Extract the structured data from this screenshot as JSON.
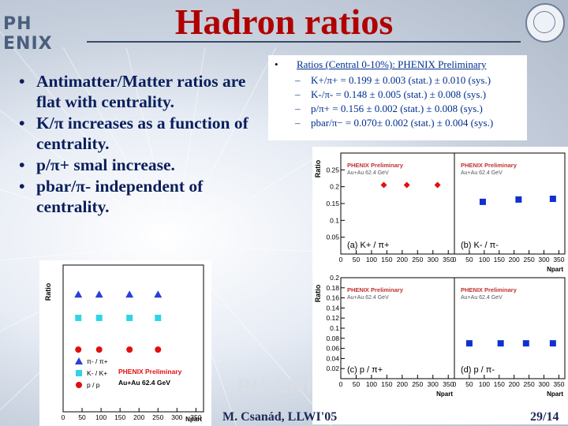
{
  "slide": {
    "title": "Hadron ratios",
    "logo_text": "PH ENIX",
    "watermark": "PH ENIX",
    "bullets": [
      "Antimatter/Matter ratios are flat with centrality.",
      "K/π increases as a function of centrality.",
      "p/π+ smal increase.",
      "pbar/π- independent of centrality."
    ],
    "box": {
      "bullet": "•",
      "heading": "Ratios (Central 0-10%): PHENIX Preliminary",
      "items": [
        "K+/π+ = 0.199 ± 0.003 (stat.) ± 0.010 (sys.)",
        "K-/π- = 0.148 ± 0.005 (stat.) ± 0.008 (sys.)",
        "p/π+ = 0.156 ± 0.002 (stat.) ± 0.008 (sys.)",
        "pbar/π− = 0.070± 0.002 (stat.) ± 0.004 (sys.)"
      ],
      "dash": "–"
    },
    "footer": {
      "author": "M. Csanád, LLWI'05",
      "page": "29/14"
    }
  },
  "chart_data": [
    {
      "type": "scatter",
      "panel": "left",
      "ylabel": "Ratio",
      "xlabel": "Npart",
      "xticks": [
        "0",
        "50",
        "100",
        "150",
        "200",
        "250",
        "300",
        "350"
      ],
      "xlim": [
        0,
        370
      ],
      "ylim": [
        0,
        1.25
      ],
      "annotation": [
        "PHENIX Preliminary",
        "Au+Au 62.4 GeV"
      ],
      "legend": [
        "π- / π+",
        "K- / K+",
        "p / p"
      ],
      "series": [
        {
          "name": "π- / π+",
          "marker": "triangle",
          "color": "#2a3fd6",
          "points": [
            [
              40,
              1.0
            ],
            [
              95,
              1.0
            ],
            [
              175,
              1.0
            ],
            [
              250,
              1.0
            ]
          ]
        },
        {
          "name": "K- / K+",
          "marker": "square",
          "color": "#2fd4e6",
          "points": [
            [
              40,
              0.8
            ],
            [
              95,
              0.8
            ],
            [
              175,
              0.8
            ],
            [
              250,
              0.8
            ]
          ]
        },
        {
          "name": "p / p",
          "marker": "circle",
          "color": "#e01010",
          "points": [
            [
              40,
              0.53
            ],
            [
              95,
              0.53
            ],
            [
              175,
              0.53
            ],
            [
              250,
              0.53
            ]
          ]
        }
      ]
    },
    {
      "type": "scatter",
      "panel": "a",
      "label": "(a)  K+ / π+",
      "watermark": [
        "PHENIX Preliminary",
        "Au+Au 62.4 GeV"
      ],
      "ylabel": "Ratio",
      "yticks": [
        "0.05",
        "0.1",
        "0.15",
        "0.2",
        "0.25"
      ],
      "ylim": [
        0,
        0.3
      ],
      "xticks": [
        "0",
        "50",
        "100",
        "150",
        "200",
        "250",
        "300",
        "350"
      ],
      "xlim": [
        0,
        370
      ],
      "color": "#e01010",
      "points": [
        [
          140,
          0.205
        ],
        [
          215,
          0.205
        ],
        [
          315,
          0.205
        ]
      ]
    },
    {
      "type": "scatter",
      "panel": "b",
      "label": "(b)  K- / π-",
      "watermark": [
        "PHENIX Preliminary",
        "Au+Au 62.4 GeV"
      ],
      "xlabel": "Npart",
      "xticks": [
        "0",
        "50",
        "100",
        "150",
        "200",
        "250",
        "300",
        "350"
      ],
      "xlim": [
        0,
        370
      ],
      "ylim": [
        0,
        0.3
      ],
      "color": "#1030d0",
      "points": [
        [
          95,
          0.155
        ],
        [
          215,
          0.162
        ],
        [
          330,
          0.164
        ]
      ]
    },
    {
      "type": "scatter",
      "panel": "c",
      "label": "(c)  p / π+",
      "watermark": [
        "PHENIX Preliminary",
        "Au+Au 62.4 GeV"
      ],
      "ylabel": "Ratio",
      "yticks": [
        "0.02",
        "0.04",
        "0.06",
        "0.08",
        "0.1",
        "0.12",
        "0.14",
        "0.16",
        "0.18",
        "0.2"
      ],
      "ylim": [
        0,
        0.2
      ],
      "xticks": [
        "0",
        "50",
        "100",
        "150",
        "200",
        "250",
        "300",
        "350"
      ],
      "xlim": [
        0,
        370
      ],
      "xlabel": "Npart",
      "points": []
    },
    {
      "type": "scatter",
      "panel": "d",
      "label": "(d)  p / π-",
      "watermark": [
        "PHENIX Preliminary",
        "Au+Au 62.4 GeV"
      ],
      "xlabel": "Npart",
      "xticks": [
        "0",
        "50",
        "100",
        "150",
        "200",
        "250",
        "300",
        "350"
      ],
      "xlim": [
        0,
        370
      ],
      "ylim": [
        0,
        0.2
      ],
      "color": "#1030d0",
      "points": [
        [
          50,
          0.07
        ],
        [
          155,
          0.07
        ],
        [
          240,
          0.07
        ],
        [
          330,
          0.07
        ]
      ]
    }
  ]
}
